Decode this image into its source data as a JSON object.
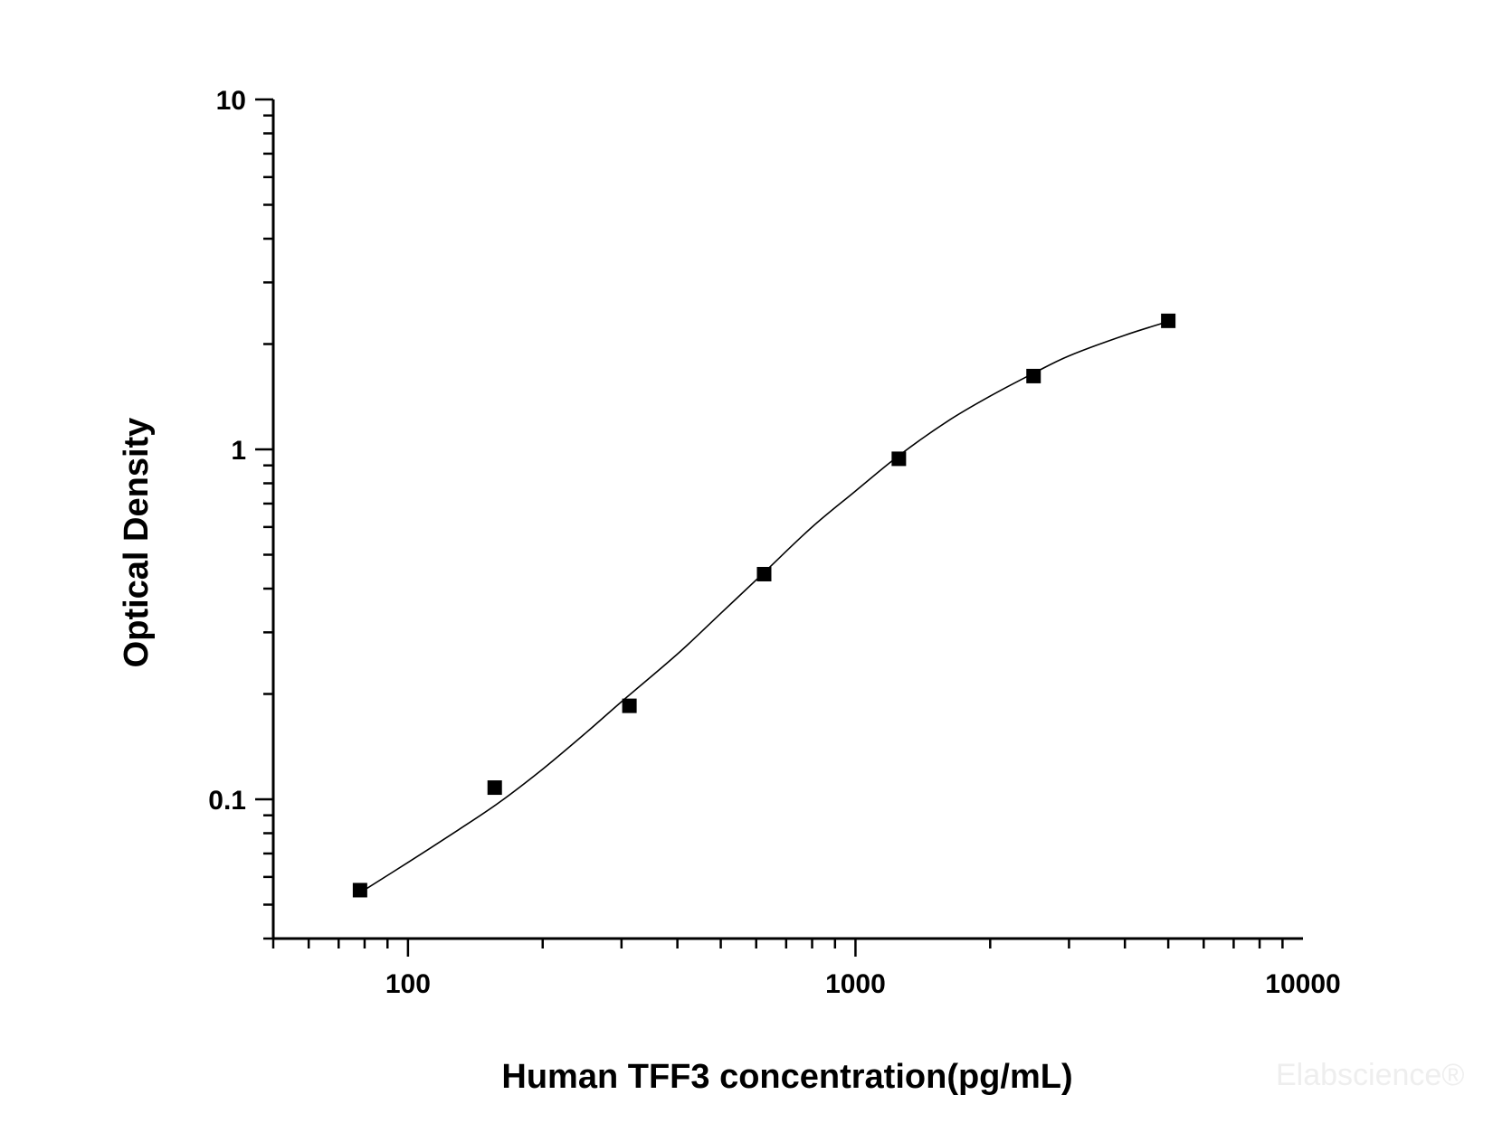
{
  "chart_data": {
    "type": "scatter",
    "title": "",
    "xlabel": "Human TFF3 concentration(pg/mL)",
    "ylabel": "Optical Density",
    "x_scale": "log",
    "y_scale": "log",
    "xlim": [
      50,
      10000
    ],
    "ylim": [
      0.04,
      10
    ],
    "x_ticks": [
      {
        "value": 100,
        "label": "100"
      },
      {
        "value": 1000,
        "label": "1000"
      },
      {
        "value": 10000,
        "label": "10000"
      }
    ],
    "y_ticks": [
      {
        "value": 0.1,
        "label": "0.1"
      },
      {
        "value": 1,
        "label": "1"
      },
      {
        "value": 10,
        "label": "10"
      }
    ],
    "grid": false,
    "legend": "none",
    "series": [
      {
        "marker": "square",
        "color": "#000000",
        "x": [
          78.13,
          156.25,
          312.5,
          625,
          1250,
          2500,
          5000
        ],
        "y": [
          0.055,
          0.108,
          0.185,
          0.44,
          0.94,
          1.62,
          2.33
        ]
      }
    ],
    "fit_curve": {
      "color": "#000000",
      "x": [
        78,
        100,
        130,
        160,
        200,
        250,
        300,
        400,
        500,
        625,
        800,
        1000,
        1250,
        1600,
        2000,
        2500,
        3000,
        4000,
        5000
      ],
      "y": [
        0.054,
        0.066,
        0.082,
        0.098,
        0.122,
        0.155,
        0.19,
        0.26,
        0.34,
        0.445,
        0.6,
        0.76,
        0.96,
        1.2,
        1.42,
        1.65,
        1.85,
        2.12,
        2.32
      ]
    }
  },
  "watermark": "Elabscience®"
}
